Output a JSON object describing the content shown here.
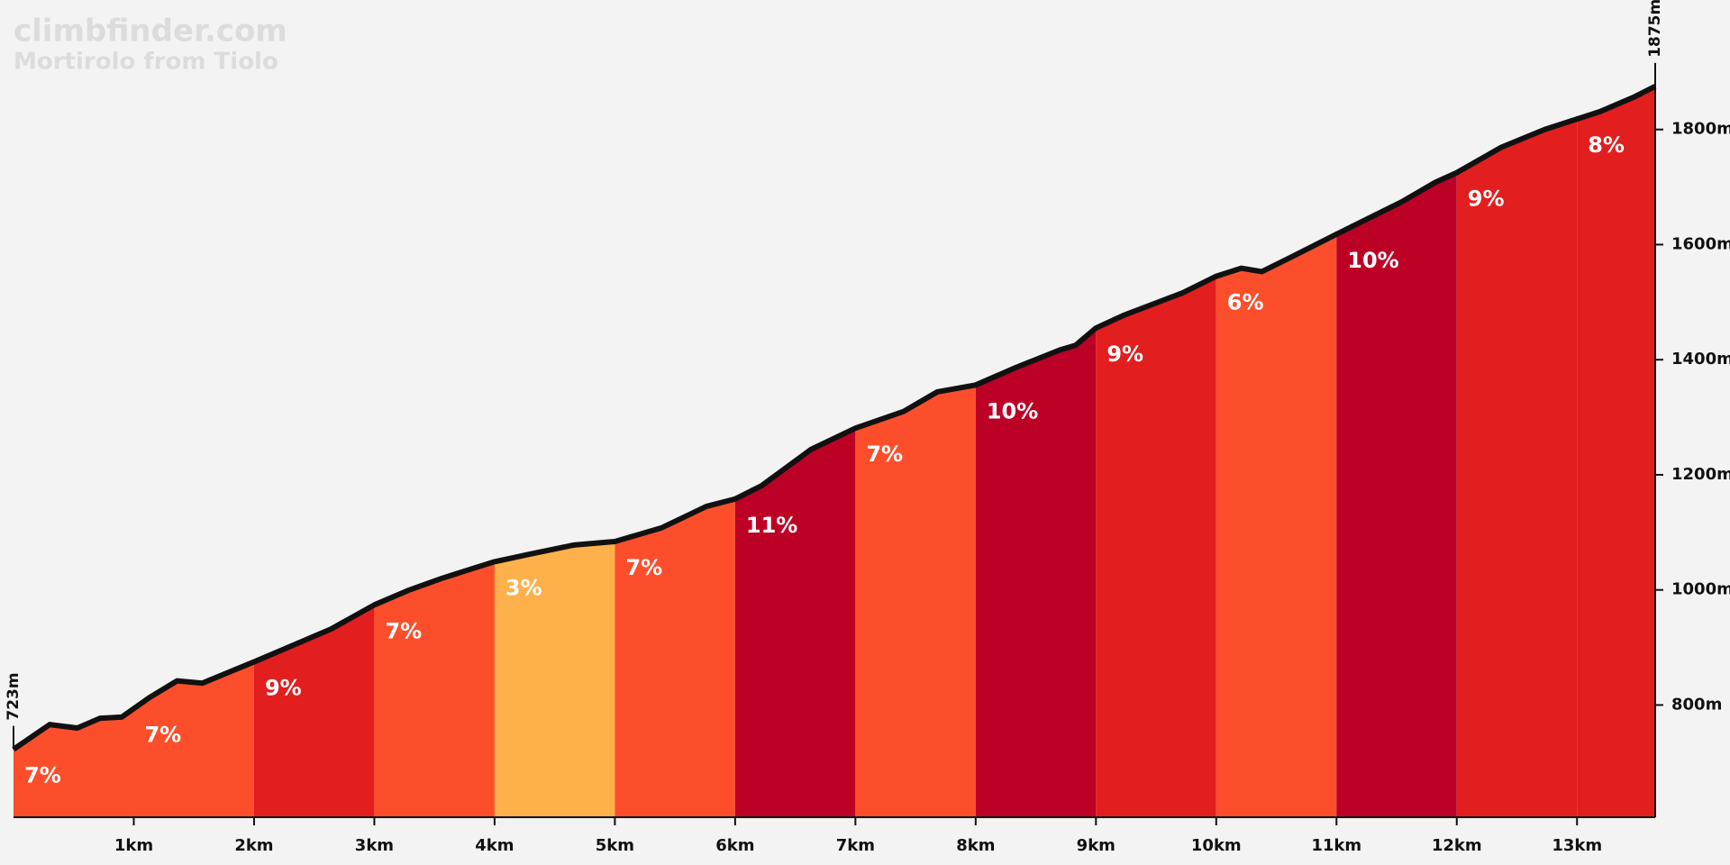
{
  "chart_data": {
    "type": "climb-profile",
    "title": "climbfinder.com",
    "subtitle": "Mortirolo from Tiolo",
    "x": [
      0,
      0.3,
      0.53,
      0.72,
      0.9,
      1.13,
      1.36,
      1.57,
      2.0,
      2.28,
      2.64,
      3.0,
      3.28,
      3.56,
      3.83,
      4.0,
      4.29,
      4.66,
      5.0,
      5.39,
      5.76,
      6.0,
      6.22,
      6.63,
      7.0,
      7.4,
      7.68,
      8.0,
      8.33,
      8.7,
      8.83,
      9.0,
      9.24,
      9.72,
      10.0,
      10.21,
      10.38,
      10.62,
      11.0,
      11.54,
      11.82,
      12.0,
      12.37,
      12.73,
      13.19,
      13.47,
      13.65
    ],
    "elevation": [
      723,
      766,
      760,
      777,
      779,
      813,
      842,
      838,
      875,
      900,
      932,
      974,
      999,
      1020,
      1038,
      1049,
      1062,
      1078,
      1084,
      1108,
      1145,
      1158,
      1181,
      1244,
      1281,
      1310,
      1344,
      1356,
      1386,
      1417,
      1425,
      1455,
      1478,
      1516,
      1545,
      1559,
      1553,
      1578,
      1618,
      1674,
      1708,
      1725,
      1769,
      1800,
      1831,
      1856,
      1875
    ],
    "segments": [
      {
        "start": 0,
        "end": 1,
        "gradient": 7,
        "label": "7%",
        "color": "#fd4e2b"
      },
      {
        "start": 1,
        "end": 2,
        "gradient": 7,
        "label": "7%",
        "color": "#fd4e2b"
      },
      {
        "start": 2,
        "end": 3,
        "gradient": 9,
        "label": "9%",
        "color": "#e31e1e"
      },
      {
        "start": 3,
        "end": 4,
        "gradient": 7,
        "label": "7%",
        "color": "#fd4e2b"
      },
      {
        "start": 4,
        "end": 5,
        "gradient": 3,
        "label": "3%",
        "color": "#feb04b"
      },
      {
        "start": 5,
        "end": 6,
        "gradient": 7,
        "label": "7%",
        "color": "#fd4e2b"
      },
      {
        "start": 6,
        "end": 7,
        "gradient": 11,
        "label": "11%",
        "color": "#bd0026"
      },
      {
        "start": 7,
        "end": 8,
        "gradient": 7,
        "label": "7%",
        "color": "#fd4e2b"
      },
      {
        "start": 8,
        "end": 9,
        "gradient": 10,
        "label": "10%",
        "color": "#bd0026"
      },
      {
        "start": 9,
        "end": 10,
        "gradient": 9,
        "label": "9%",
        "color": "#e31e1e"
      },
      {
        "start": 10,
        "end": 11,
        "gradient": 6,
        "label": "6%",
        "color": "#fd4e2b"
      },
      {
        "start": 11,
        "end": 12,
        "gradient": 10,
        "label": "10%",
        "color": "#bd0026"
      },
      {
        "start": 12,
        "end": 13,
        "gradient": 9,
        "label": "9%",
        "color": "#e31e1e"
      },
      {
        "start": 13,
        "end": 13.65,
        "gradient": 8,
        "label": "8%",
        "color": "#e31e1e"
      }
    ],
    "xlim": [
      0,
      13.65
    ],
    "ylim": [
      605,
      2025
    ],
    "xticks": [
      {
        "value": 1,
        "label": "1km"
      },
      {
        "value": 2,
        "label": "2km"
      },
      {
        "value": 3,
        "label": "3km"
      },
      {
        "value": 4,
        "label": "4km"
      },
      {
        "value": 5,
        "label": "5km"
      },
      {
        "value": 6,
        "label": "6km"
      },
      {
        "value": 7,
        "label": "7km"
      },
      {
        "value": 8,
        "label": "8km"
      },
      {
        "value": 9,
        "label": "9km"
      },
      {
        "value": 10,
        "label": "10km"
      },
      {
        "value": 11,
        "label": "11km"
      },
      {
        "value": 12,
        "label": "12km"
      },
      {
        "value": 13,
        "label": "13km"
      }
    ],
    "yticks": [
      {
        "value": 800,
        "label": "800m"
      },
      {
        "value": 1000,
        "label": "1000m"
      },
      {
        "value": 1200,
        "label": "1200m"
      },
      {
        "value": 1400,
        "label": "1400m"
      },
      {
        "value": 1600,
        "label": "1600m"
      },
      {
        "value": 1800,
        "label": "1800m"
      }
    ],
    "annotations": [
      {
        "x": 0,
        "value": 723,
        "label": "723m"
      },
      {
        "x": 13.65,
        "value": 1875,
        "label": "1875m"
      }
    ]
  }
}
